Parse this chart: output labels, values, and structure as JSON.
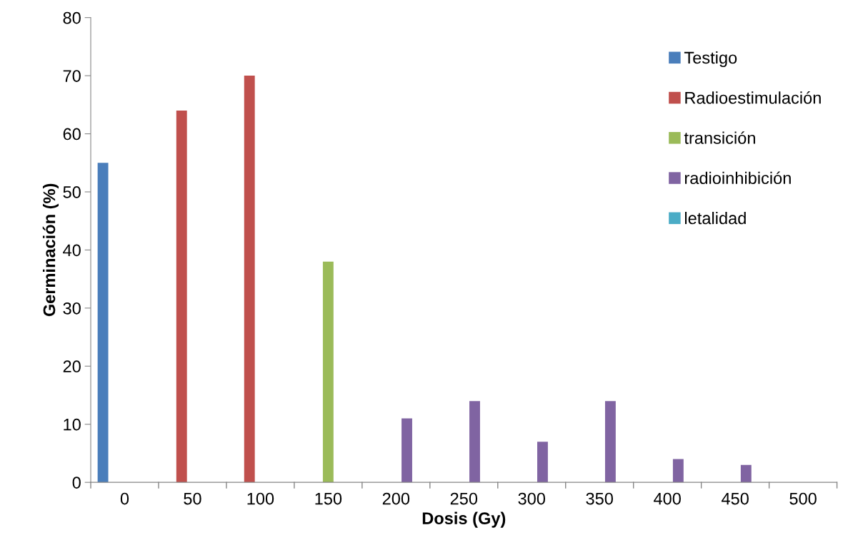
{
  "chart_data": {
    "type": "bar",
    "xlabel": "Dosis (Gy)",
    "ylabel": "Germinación (%)",
    "categories": [
      "0",
      "50",
      "100",
      "150",
      "200",
      "250",
      "300",
      "350",
      "400",
      "450",
      "500"
    ],
    "series": [
      {
        "name": "Testigo",
        "color": "#4a7ebb",
        "values": [
          55,
          null,
          null,
          null,
          null,
          null,
          null,
          null,
          null,
          null,
          null
        ]
      },
      {
        "name": "Radioestimulación",
        "color": "#c0504d",
        "values": [
          null,
          64,
          70,
          null,
          null,
          null,
          null,
          null,
          null,
          null,
          null
        ]
      },
      {
        "name": "transición",
        "color": "#9bbb59",
        "values": [
          null,
          null,
          null,
          38,
          null,
          null,
          null,
          null,
          null,
          null,
          null
        ]
      },
      {
        "name": "radioinhibición",
        "color": "#8064a2",
        "values": [
          null,
          null,
          null,
          null,
          11,
          14,
          7,
          14,
          4,
          3,
          null
        ]
      },
      {
        "name": "letalidad",
        "color": "#4bacc6",
        "values": [
          null,
          null,
          null,
          null,
          null,
          null,
          null,
          null,
          null,
          null,
          0
        ]
      }
    ],
    "ylim": [
      0,
      80
    ],
    "yticks": [
      0,
      10,
      20,
      30,
      40,
      50,
      60,
      70,
      80
    ],
    "grid": false,
    "legend": "top right"
  }
}
